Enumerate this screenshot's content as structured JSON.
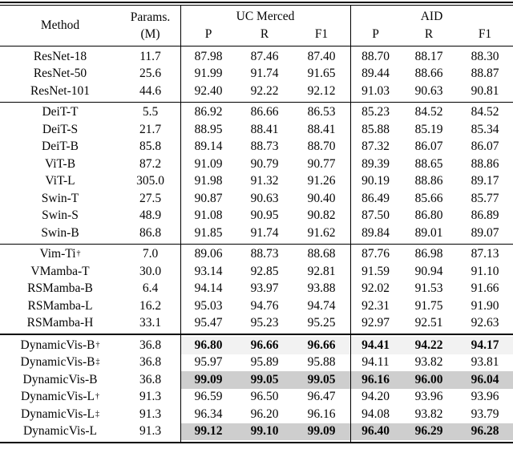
{
  "colors": {
    "shade_light": "#f2f2f2",
    "shade_dark": "#cecece",
    "rule": "#000000",
    "text": "#050505",
    "background": "#ffffff"
  },
  "table": {
    "header": {
      "method": "Method",
      "params_line1": "Params.",
      "params_line2": "(M)",
      "group_uc": "UC Merced",
      "group_aid": "AID",
      "sub_p": "P",
      "sub_r": "R",
      "sub_f1": "F1"
    },
    "groups": [
      {
        "rows": [
          {
            "method": "ResNet-18",
            "sup": "",
            "params": "11.7",
            "values": [
              "87.98",
              "87.46",
              "87.40",
              "88.70",
              "88.17",
              "88.30"
            ],
            "bold": false,
            "shade": "none"
          },
          {
            "method": "ResNet-50",
            "sup": "",
            "params": "25.6",
            "values": [
              "91.99",
              "91.74",
              "91.65",
              "89.44",
              "88.66",
              "88.87"
            ],
            "bold": false,
            "shade": "none"
          },
          {
            "method": "ResNet-101",
            "sup": "",
            "params": "44.6",
            "values": [
              "92.40",
              "92.22",
              "92.12",
              "91.03",
              "90.63",
              "90.81"
            ],
            "bold": false,
            "shade": "none"
          }
        ]
      },
      {
        "rows": [
          {
            "method": "DeiT-T",
            "sup": "",
            "params": "5.5",
            "values": [
              "86.92",
              "86.66",
              "86.53",
              "85.23",
              "84.52",
              "84.52"
            ],
            "bold": false,
            "shade": "none"
          },
          {
            "method": "DeiT-S",
            "sup": "",
            "params": "21.7",
            "values": [
              "88.95",
              "88.41",
              "88.41",
              "85.88",
              "85.19",
              "85.34"
            ],
            "bold": false,
            "shade": "none"
          },
          {
            "method": "DeiT-B",
            "sup": "",
            "params": "85.8",
            "values": [
              "89.14",
              "88.73",
              "88.70",
              "87.32",
              "86.07",
              "86.07"
            ],
            "bold": false,
            "shade": "none"
          },
          {
            "method": "ViT-B",
            "sup": "",
            "params": "87.2",
            "values": [
              "91.09",
              "90.79",
              "90.77",
              "89.39",
              "88.65",
              "88.86"
            ],
            "bold": false,
            "shade": "none"
          },
          {
            "method": "ViT-L",
            "sup": "",
            "params": "305.0",
            "values": [
              "91.98",
              "91.32",
              "91.26",
              "90.19",
              "88.86",
              "89.17"
            ],
            "bold": false,
            "shade": "none"
          },
          {
            "method": "Swin-T",
            "sup": "",
            "params": "27.5",
            "values": [
              "90.87",
              "90.63",
              "90.40",
              "86.49",
              "85.66",
              "85.77"
            ],
            "bold": false,
            "shade": "none"
          },
          {
            "method": "Swin-S",
            "sup": "",
            "params": "48.9",
            "values": [
              "91.08",
              "90.95",
              "90.82",
              "87.50",
              "86.80",
              "86.89"
            ],
            "bold": false,
            "shade": "none"
          },
          {
            "method": "Swin-B",
            "sup": "",
            "params": "86.8",
            "values": [
              "91.85",
              "91.74",
              "91.62",
              "89.84",
              "89.01",
              "89.07"
            ],
            "bold": false,
            "shade": "none"
          }
        ]
      },
      {
        "rows": [
          {
            "method": "Vim-Ti",
            "sup": "†",
            "params": "7.0",
            "values": [
              "89.06",
              "88.73",
              "88.68",
              "87.76",
              "86.98",
              "87.13"
            ],
            "bold": false,
            "shade": "none"
          },
          {
            "method": "VMamba-T",
            "sup": "",
            "params": "30.0",
            "values": [
              "93.14",
              "92.85",
              "92.81",
              "91.59",
              "90.94",
              "91.10"
            ],
            "bold": false,
            "shade": "none"
          },
          {
            "method": "RSMamba-B",
            "sup": "",
            "params": "6.4",
            "values": [
              "94.14",
              "93.97",
              "93.88",
              "92.02",
              "91.53",
              "91.66"
            ],
            "bold": false,
            "shade": "none"
          },
          {
            "method": "RSMamba-L",
            "sup": "",
            "params": "16.2",
            "values": [
              "95.03",
              "94.76",
              "94.74",
              "92.31",
              "91.75",
              "91.90"
            ],
            "bold": false,
            "shade": "none"
          },
          {
            "method": "RSMamba-H",
            "sup": "",
            "params": "33.1",
            "values": [
              "95.47",
              "95.23",
              "95.25",
              "92.97",
              "92.51",
              "92.63"
            ],
            "bold": false,
            "shade": "none"
          }
        ]
      },
      {
        "rows": [
          {
            "method": "DynamicVis-B",
            "sup": "†",
            "params": "36.8",
            "values": [
              "96.80",
              "96.66",
              "96.66",
              "94.41",
              "94.22",
              "94.17"
            ],
            "bold": true,
            "shade": "light"
          },
          {
            "method": "DynamicVis-B",
            "sup": "‡",
            "params": "36.8",
            "values": [
              "95.97",
              "95.89",
              "95.88",
              "94.11",
              "93.82",
              "93.81"
            ],
            "bold": false,
            "shade": "none"
          },
          {
            "method": "DynamicVis-B",
            "sup": "",
            "params": "36.8",
            "values": [
              "99.09",
              "99.05",
              "99.05",
              "96.16",
              "96.00",
              "96.04"
            ],
            "bold": true,
            "shade": "dark"
          },
          {
            "method": "DynamicVis-L",
            "sup": "†",
            "params": "91.3",
            "values": [
              "96.59",
              "96.50",
              "96.47",
              "94.20",
              "93.96",
              "93.96"
            ],
            "bold": false,
            "shade": "none"
          },
          {
            "method": "DynamicVis-L",
            "sup": "‡",
            "params": "91.3",
            "values": [
              "96.34",
              "96.20",
              "96.16",
              "94.08",
              "93.82",
              "93.79"
            ],
            "bold": false,
            "shade": "none"
          },
          {
            "method": "DynamicVis-L",
            "sup": "",
            "params": "91.3",
            "values": [
              "99.12",
              "99.10",
              "99.09",
              "96.40",
              "96.29",
              "96.28"
            ],
            "bold": true,
            "shade": "dark"
          }
        ]
      }
    ]
  }
}
